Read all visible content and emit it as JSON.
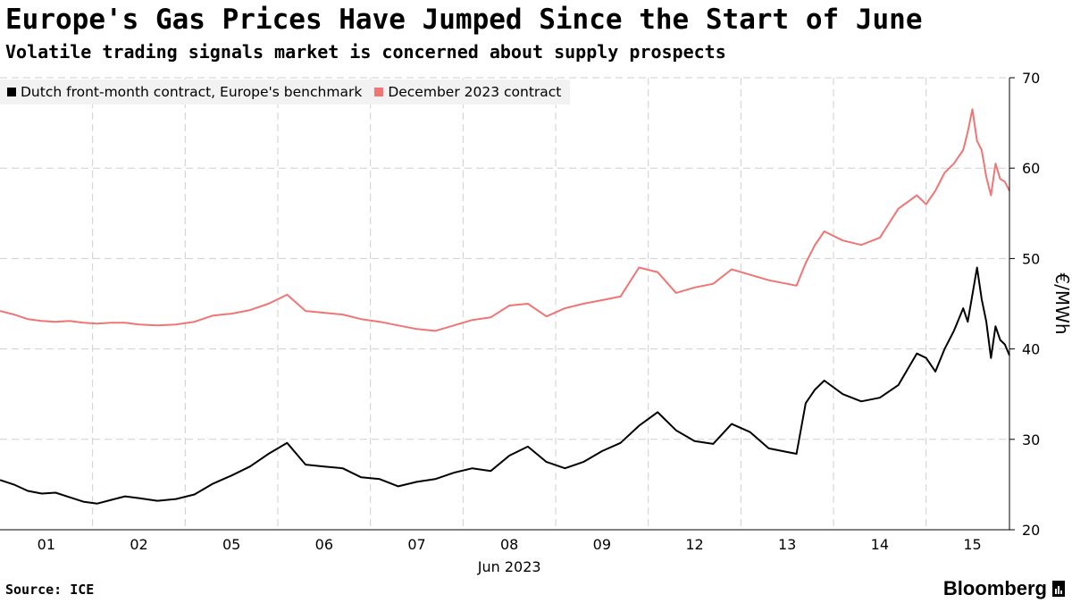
{
  "header": {
    "title": "Europe's Gas Prices Have Jumped Since the Start of June",
    "subtitle": "Volatile trading signals market is concerned about supply prospects"
  },
  "footer": {
    "source": "Source: ICE",
    "brand": "Bloomberg"
  },
  "chart_data": {
    "type": "line",
    "title": "Europe's Gas Prices Have Jumped Since the Start of June",
    "subtitle": "Volatile trading signals market is concerned about supply prospects",
    "xlabel": "Jun 2023",
    "ylabel": "€/MWh",
    "ylim": [
      20,
      70
    ],
    "yticks": [
      20,
      30,
      40,
      50,
      60,
      70
    ],
    "y_axis_side": "right",
    "categories": [
      "01",
      "02",
      "05",
      "06",
      "07",
      "08",
      "09",
      "12",
      "13",
      "14",
      "15"
    ],
    "xlim": [
      0.5,
      11.4
    ],
    "grid": true,
    "legend_position": "top-left",
    "series": [
      {
        "name": "Dutch front-month contract, Europe's benchmark",
        "color": "#000000",
        "x": [
          0.5,
          0.65,
          0.8,
          0.95,
          1.1,
          1.25,
          1.4,
          1.55,
          1.7,
          1.85,
          2.0,
          2.2,
          2.4,
          2.6,
          2.8,
          3.0,
          3.2,
          3.4,
          3.6,
          3.8,
          4.0,
          4.2,
          4.4,
          4.6,
          4.8,
          5.0,
          5.2,
          5.4,
          5.6,
          5.8,
          6.0,
          6.2,
          6.4,
          6.6,
          6.8,
          7.0,
          7.2,
          7.4,
          7.6,
          7.8,
          8.0,
          8.2,
          8.4,
          8.6,
          8.8,
          9.0,
          9.1,
          9.2,
          9.3,
          9.4,
          9.6,
          9.8,
          10.0,
          10.2,
          10.4,
          10.5,
          10.6,
          10.7,
          10.8,
          10.9,
          10.95,
          11.0,
          11.05,
          11.1,
          11.15,
          11.2,
          11.25,
          11.3,
          11.35,
          11.4
        ],
        "y": [
          25.5,
          25.0,
          24.3,
          24.0,
          24.1,
          23.6,
          23.1,
          22.9,
          23.3,
          23.7,
          23.5,
          23.2,
          23.4,
          23.9,
          25.1,
          26.0,
          27.0,
          28.4,
          29.6,
          27.2,
          27.0,
          26.8,
          25.8,
          25.6,
          24.8,
          25.3,
          25.6,
          26.3,
          26.8,
          26.5,
          28.2,
          29.2,
          27.5,
          26.8,
          27.5,
          28.7,
          29.6,
          31.5,
          33.0,
          31.0,
          29.8,
          29.5,
          31.7,
          30.8,
          29.0,
          28.6,
          28.4,
          34.0,
          35.5,
          36.5,
          35.0,
          34.2,
          34.6,
          36.0,
          39.5,
          39.0,
          37.5,
          40.0,
          42.0,
          44.5,
          43.0,
          46.0,
          49.0,
          45.5,
          43.0,
          39.0,
          42.5,
          41.0,
          40.5,
          39.3
        ]
      },
      {
        "name": "December 2023 contract",
        "color": "#f07575",
        "x": [
          0.5,
          0.65,
          0.8,
          0.95,
          1.1,
          1.25,
          1.4,
          1.55,
          1.7,
          1.85,
          2.0,
          2.2,
          2.4,
          2.6,
          2.8,
          3.0,
          3.2,
          3.4,
          3.6,
          3.8,
          4.0,
          4.2,
          4.4,
          4.6,
          4.8,
          5.0,
          5.2,
          5.4,
          5.6,
          5.8,
          6.0,
          6.2,
          6.4,
          6.6,
          6.8,
          7.0,
          7.2,
          7.4,
          7.6,
          7.8,
          8.0,
          8.2,
          8.4,
          8.6,
          8.8,
          9.0,
          9.1,
          9.2,
          9.3,
          9.4,
          9.6,
          9.8,
          10.0,
          10.2,
          10.4,
          10.5,
          10.6,
          10.7,
          10.8,
          10.9,
          10.95,
          11.0,
          11.05,
          11.1,
          11.15,
          11.2,
          11.25,
          11.3,
          11.35,
          11.4
        ],
        "y": [
          44.2,
          43.8,
          43.3,
          43.1,
          43.0,
          43.1,
          42.9,
          42.8,
          42.9,
          42.9,
          42.7,
          42.6,
          42.7,
          43.0,
          43.7,
          43.9,
          44.3,
          45.0,
          46.0,
          44.2,
          44.0,
          43.8,
          43.3,
          43.0,
          42.6,
          42.2,
          42.0,
          42.6,
          43.2,
          43.5,
          44.8,
          45.0,
          43.6,
          44.5,
          45.0,
          45.4,
          45.8,
          49.0,
          48.5,
          46.2,
          46.8,
          47.2,
          48.8,
          48.2,
          47.6,
          47.2,
          47.0,
          49.5,
          51.5,
          53.0,
          52.0,
          51.5,
          52.3,
          55.5,
          57.0,
          56.0,
          57.5,
          59.5,
          60.5,
          62.0,
          64.0,
          66.5,
          63.0,
          62.0,
          59.0,
          57.0,
          60.5,
          58.8,
          58.5,
          57.5
        ]
      }
    ]
  }
}
